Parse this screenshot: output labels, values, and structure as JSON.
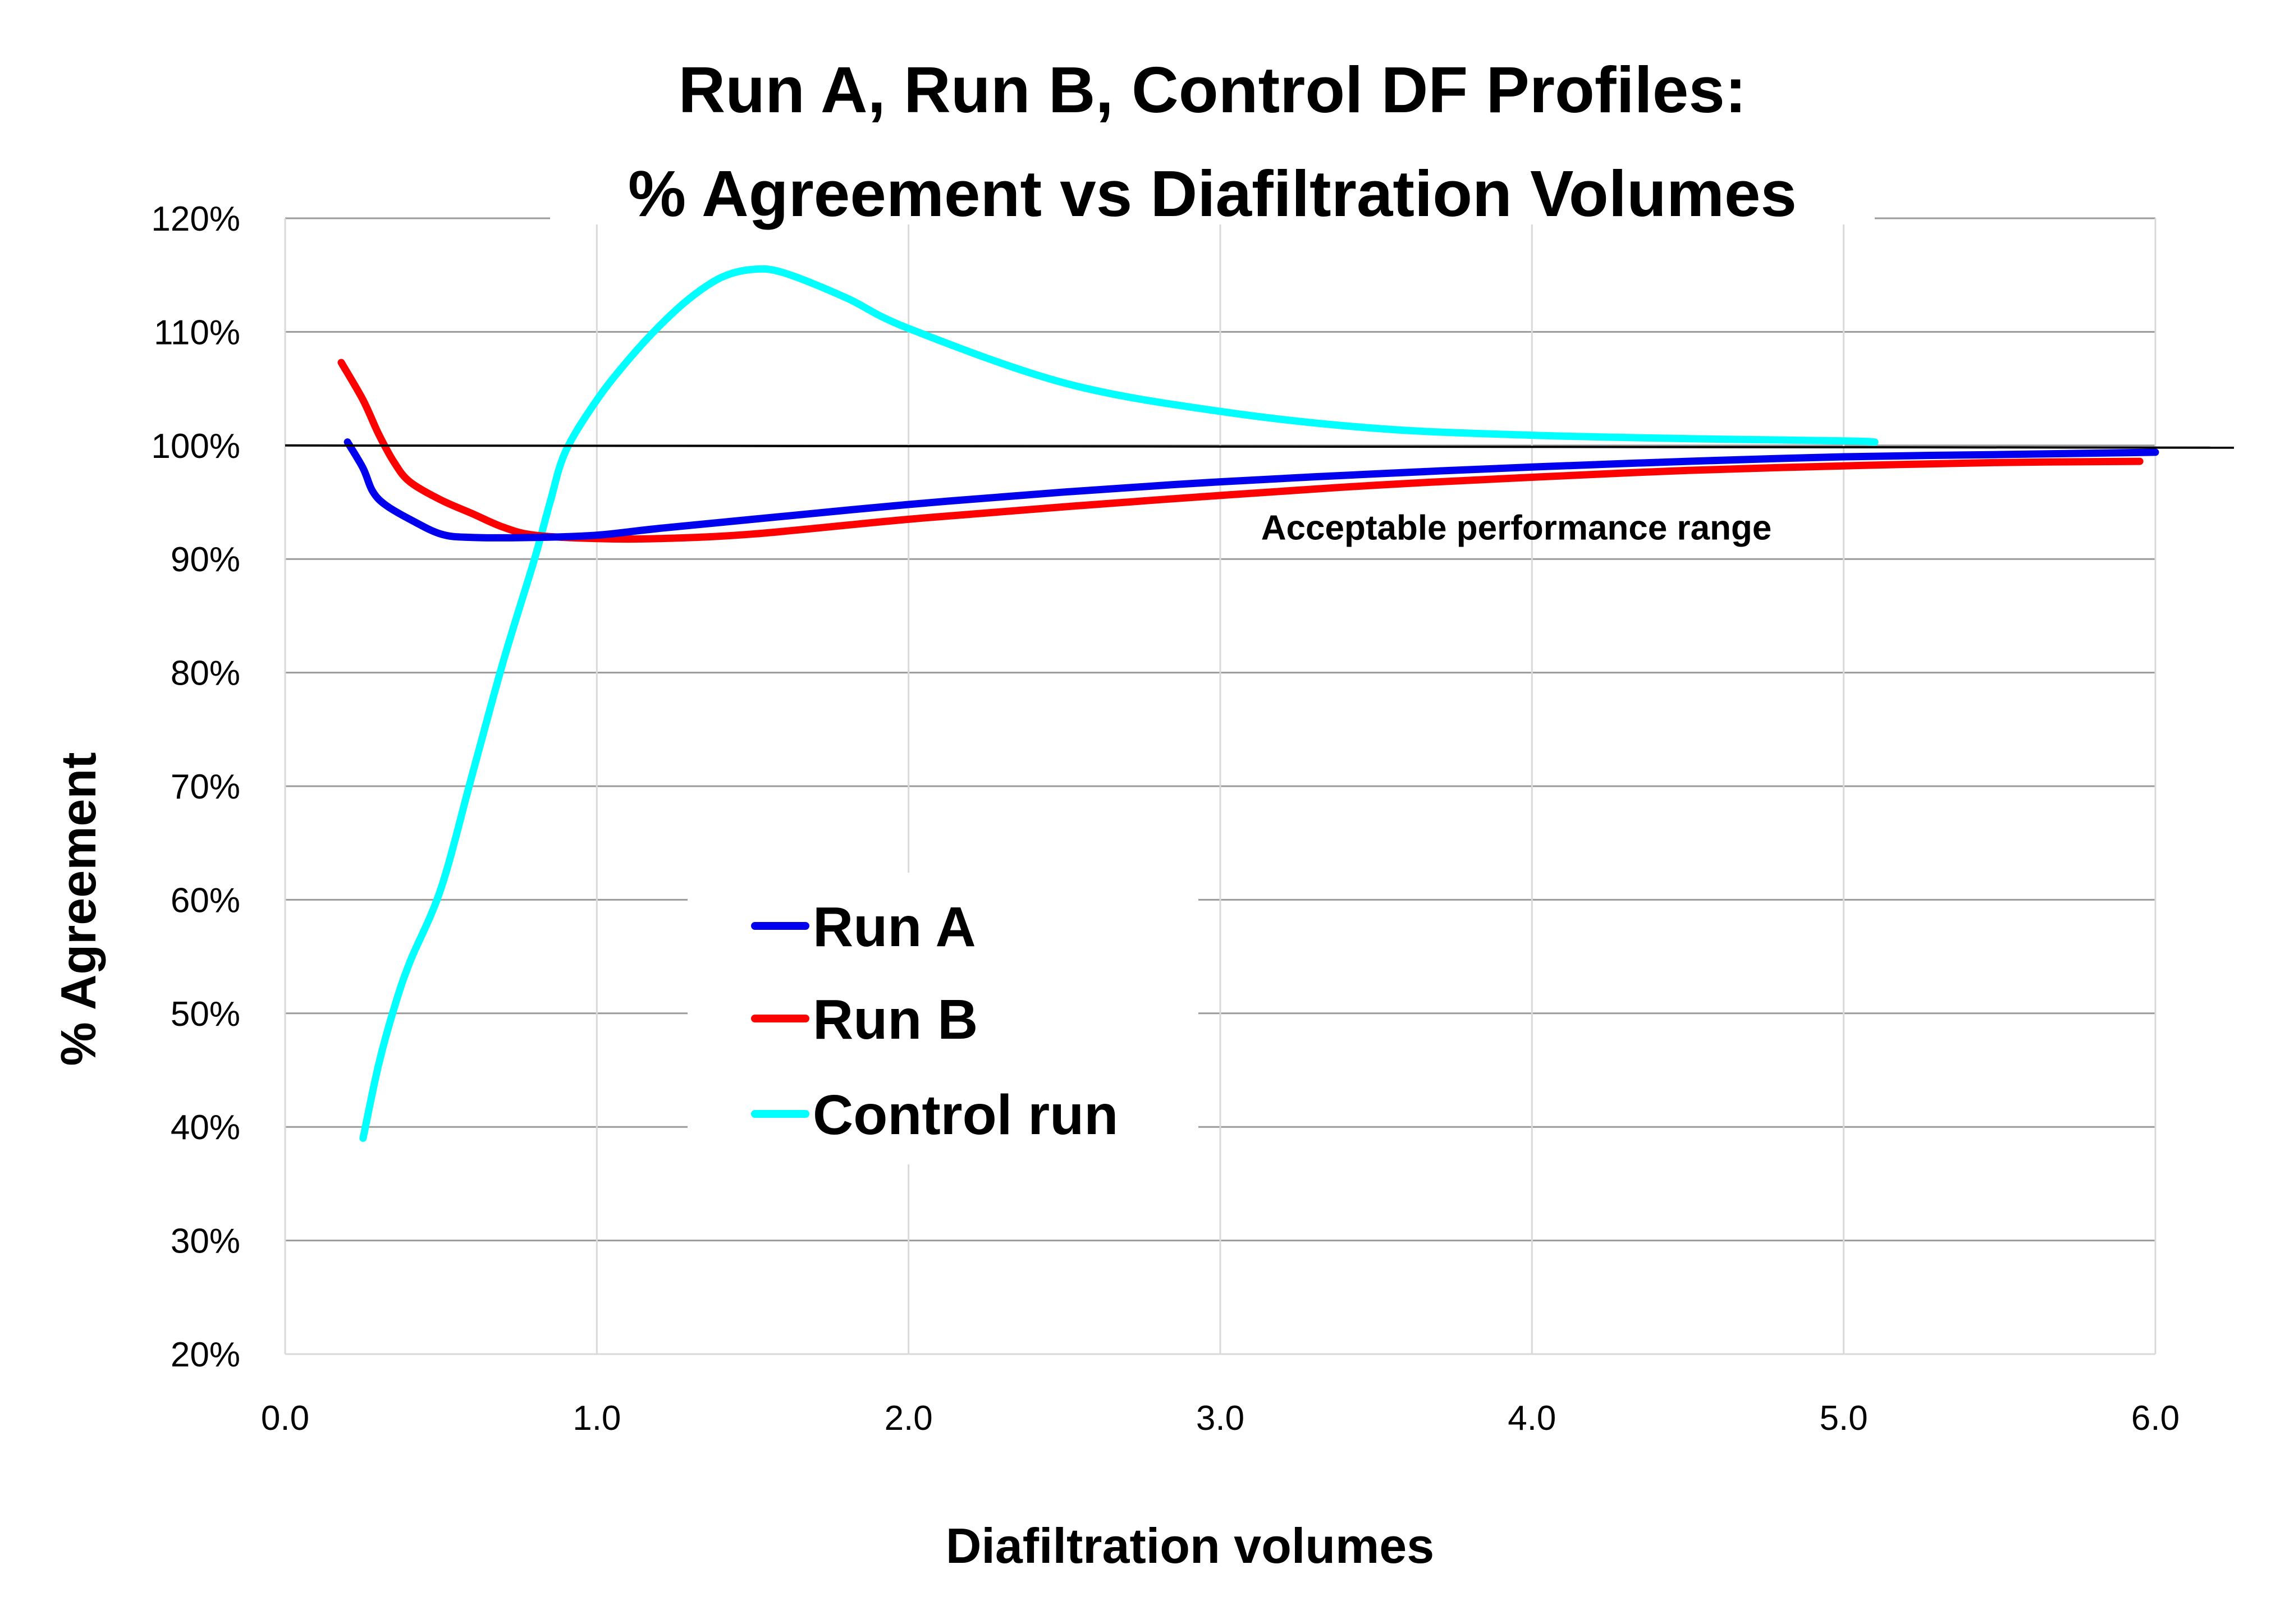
{
  "chart_data": {
    "type": "line",
    "title": [
      "Run A, Run B, Control DF Profiles:",
      "% Agreement vs Diafiltration Volumes"
    ],
    "xlabel": "Diafiltration volumes",
    "ylabel": "% Agreement",
    "xlim": [
      0,
      6
    ],
    "ylim": [
      20,
      120
    ],
    "x_ticks": [
      0,
      1,
      2,
      3,
      4,
      5,
      6
    ],
    "x_tick_labels": [
      "0.0",
      "1.0",
      "2.0",
      "3.0",
      "4.0",
      "5.0",
      "6.0"
    ],
    "y_ticks": [
      20,
      30,
      40,
      50,
      60,
      70,
      80,
      90,
      100,
      110,
      120
    ],
    "y_tick_labels": [
      "20%",
      "30%",
      "40%",
      "50%",
      "60%",
      "70%",
      "80%",
      "90%",
      "100%",
      "110%",
      "120%"
    ],
    "grid": "both",
    "legend_position": "center-left",
    "reference_line": {
      "y": 100
    },
    "annotations": [
      {
        "text": "Acceptable performance range",
        "x": 3.95,
        "y": 92.8
      }
    ],
    "series": [
      {
        "name": "Run A",
        "color": "#0000ee",
        "x": [
          0.2,
          0.25,
          0.28,
          0.32,
          0.4,
          0.5,
          0.6,
          0.8,
          1.0,
          1.2,
          1.5,
          2.0,
          2.5,
          3.0,
          3.5,
          4.0,
          4.5,
          5.0,
          5.5,
          6.0
        ],
        "y": [
          100.3,
          98.0,
          96.0,
          94.8,
          93.5,
          92.2,
          91.9,
          91.9,
          92.1,
          92.7,
          93.5,
          94.8,
          95.9,
          96.8,
          97.5,
          98.1,
          98.6,
          99.0,
          99.2,
          99.4
        ]
      },
      {
        "name": "Run B",
        "color": "#ff0000",
        "x": [
          0.18,
          0.25,
          0.3,
          0.35,
          0.4,
          0.5,
          0.6,
          0.7,
          0.8,
          1.0,
          1.2,
          1.5,
          2.0,
          2.5,
          3.0,
          3.5,
          4.0,
          4.5,
          5.0,
          5.5,
          5.95
        ],
        "y": [
          107.3,
          104.0,
          101.0,
          98.5,
          96.8,
          95.2,
          94.0,
          92.8,
          92.1,
          91.8,
          91.8,
          92.2,
          93.5,
          94.6,
          95.6,
          96.5,
          97.2,
          97.8,
          98.2,
          98.5,
          98.6
        ]
      },
      {
        "name": "Control run",
        "color": "#00ffff",
        "x": [
          0.25,
          0.3,
          0.35,
          0.4,
          0.5,
          0.6,
          0.7,
          0.8,
          0.85,
          0.9,
          1.0,
          1.1,
          1.2,
          1.3,
          1.4,
          1.5,
          1.6,
          1.8,
          2.0,
          2.5,
          3.0,
          3.5,
          4.0,
          4.5,
          5.0,
          5.1
        ],
        "y": [
          39.0,
          45.5,
          50.5,
          54.5,
          61.0,
          71.0,
          81.0,
          90.0,
          95.0,
          99.5,
          104.0,
          107.5,
          110.5,
          113.0,
          114.8,
          115.5,
          115.2,
          113.0,
          110.3,
          105.5,
          103.0,
          101.5,
          100.9,
          100.6,
          100.4,
          100.3
        ]
      }
    ]
  }
}
